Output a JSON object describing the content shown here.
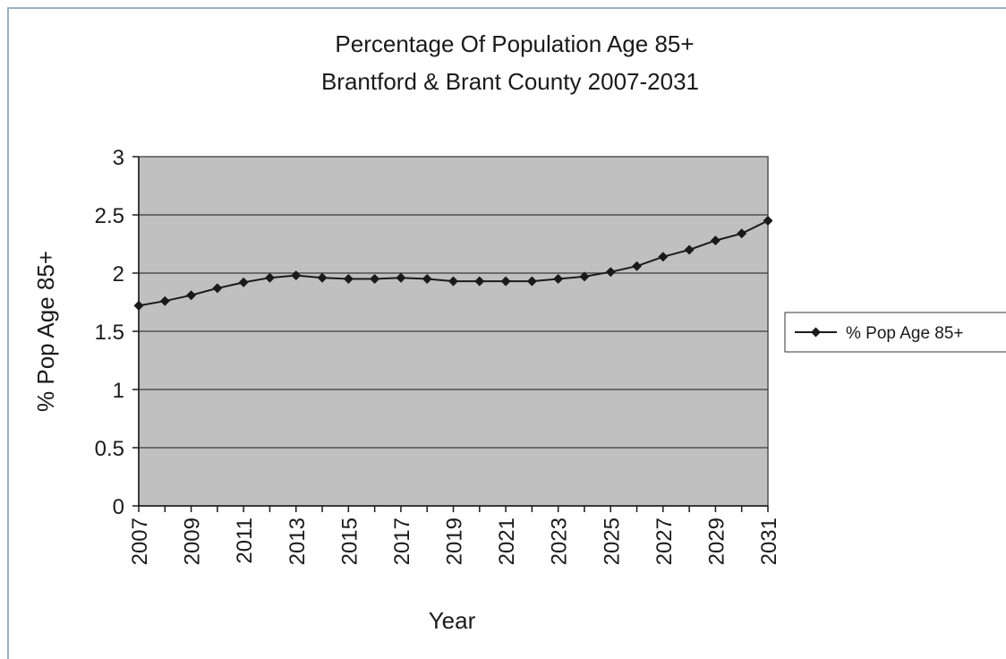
{
  "chart_data": {
    "type": "line",
    "title": [
      "Percentage Of Population Age 85+",
      "Brantford & Brant County  2007-2031"
    ],
    "xlabel": "Year",
    "ylabel": "% Pop Age 85+",
    "ylim": [
      0,
      3
    ],
    "yticks": [
      0,
      0.5,
      1,
      1.5,
      2,
      2.5,
      3
    ],
    "ytick_labels": [
      "0",
      "0.5",
      "1",
      "1.5",
      "2",
      "2.5",
      "3"
    ],
    "xlim": [
      2007,
      2031
    ],
    "xtick_labels": [
      "2007",
      "2009",
      "2011",
      "2013",
      "2015",
      "2017",
      "2019",
      "2021",
      "2023",
      "2025",
      "2027",
      "2029",
      "2031"
    ],
    "grid": true,
    "legend_position": "right",
    "series": [
      {
        "name": "% Pop Age 85+",
        "x": [
          2007,
          2008,
          2009,
          2010,
          2011,
          2012,
          2013,
          2014,
          2015,
          2016,
          2017,
          2018,
          2019,
          2020,
          2021,
          2022,
          2023,
          2024,
          2025,
          2026,
          2027,
          2028,
          2029,
          2030,
          2031
        ],
        "values": [
          1.72,
          1.76,
          1.81,
          1.87,
          1.92,
          1.96,
          1.98,
          1.96,
          1.95,
          1.95,
          1.96,
          1.95,
          1.93,
          1.93,
          1.93,
          1.93,
          1.95,
          1.97,
          2.01,
          2.06,
          2.14,
          2.2,
          2.28,
          2.34,
          2.45
        ]
      }
    ],
    "colors": {
      "plot_background": "#c0c0c0",
      "line": "#1a1a1a",
      "gridline": "#3a3a3a",
      "frame": "#9ab0c4"
    }
  }
}
